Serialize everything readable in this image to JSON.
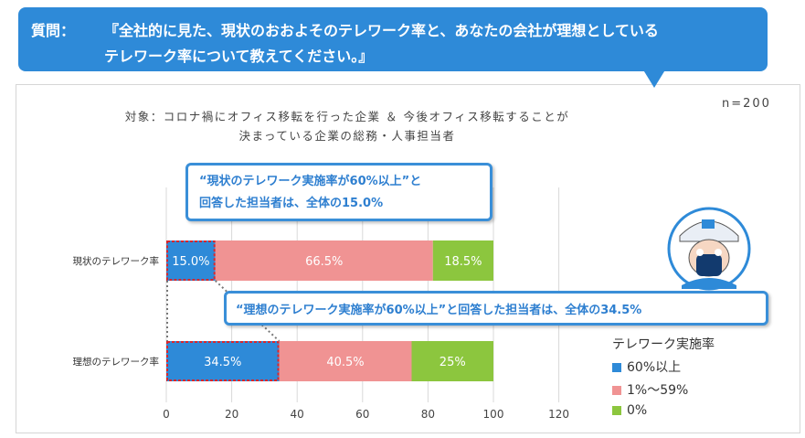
{
  "question": {
    "label": "質問：",
    "line1": "『全社的に見た、現状のおおよそのテレワーク率と、あなたの会社が理想としている",
    "line2": "テレワーク率について教えてください。』"
  },
  "subject": {
    "line1": "対象：コロナ禍にオフィス移転を行った企業 ＆ 今後オフィス移転することが",
    "line2": "決まっている企業の総務・人事担当者"
  },
  "sample_size": "n=200",
  "callouts": {
    "current_line1": "“現状のテレワーク実施率が60%以上”と",
    "current_line2": "回答した担当者は、全体の15.0%",
    "ideal": "“理想のテレワーク実施率が60%以上”と回答した担当者は、全体の34.5%"
  },
  "colors": {
    "blue": "#2e8ad8",
    "pink": "#f09393",
    "green": "#8cc63e",
    "highlight": "#d9262b"
  },
  "legend": {
    "title": "テレワーク実施率",
    "items": [
      "60%以上",
      "1%〜59%",
      "0%"
    ]
  },
  "chart_data": {
    "type": "bar",
    "orientation": "horizontal",
    "stacked": true,
    "categories": [
      "現状のテレワーク率",
      "理想のテレワーク率"
    ],
    "series": [
      {
        "name": "60%以上",
        "values": [
          15.0,
          34.5
        ],
        "labels": [
          "15.0%",
          "34.5%"
        ]
      },
      {
        "name": "1%〜59%",
        "values": [
          66.5,
          40.5
        ],
        "labels": [
          "66.5%",
          "40.5%"
        ]
      },
      {
        "name": "0%",
        "values": [
          18.5,
          25
        ],
        "labels": [
          "18.5%",
          "25%"
        ]
      }
    ],
    "xlim": [
      0,
      120
    ],
    "xticks": [
      "0",
      "20",
      "40",
      "60",
      "80",
      "100",
      "120"
    ],
    "grid": true,
    "legend_position": "bottom-right"
  }
}
